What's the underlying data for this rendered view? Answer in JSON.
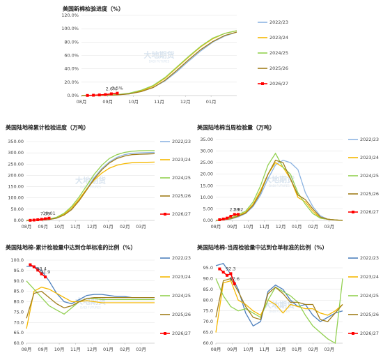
{
  "chart_data": [
    {
      "type": "line",
      "title": "美国新棉检验进度（%）",
      "watermark": "大地期货",
      "watermark_sub": "DADI FUTURES",
      "xlim": [
        0,
        26
      ],
      "xticks": [
        {
          "value": 0,
          "label": "08月"
        },
        {
          "value": 4.4,
          "label": "09月"
        },
        {
          "value": 8.7,
          "label": "10月"
        },
        {
          "value": 13,
          "label": "11月"
        },
        {
          "value": 17.4,
          "label": "12月"
        },
        {
          "value": 21.7,
          "label": "01月"
        }
      ],
      "ylim": [
        0,
        120
      ],
      "yticks": [
        {
          "value": 0,
          "label": "0.0%"
        },
        {
          "value": 20,
          "label": "20.0%"
        },
        {
          "value": 40,
          "label": "40.0%"
        },
        {
          "value": 60,
          "label": "60.0%"
        },
        {
          "value": 80,
          "label": "80.0%"
        },
        {
          "value": 100,
          "label": "100.0%"
        },
        {
          "value": 120,
          "label": "120.0%"
        }
      ],
      "grid": true,
      "x": [
        0,
        2,
        4,
        6,
        8,
        10,
        12,
        14,
        16,
        18,
        20,
        22,
        24,
        26
      ],
      "series": [
        {
          "name": "2022/23",
          "color": "#8db4e2",
          "values": [
            0,
            0.1,
            0.3,
            1,
            2.5,
            6,
            12,
            22,
            36,
            52,
            67,
            80,
            89,
            95
          ]
        },
        {
          "name": "2023/24",
          "color": "#f5b800",
          "values": [
            0,
            0.2,
            0.5,
            1.2,
            3,
            7,
            14,
            26,
            42,
            58,
            73,
            85,
            93,
            97
          ]
        },
        {
          "name": "2024/25",
          "color": "#92d050",
          "values": [
            0,
            0.2,
            0.6,
            1.5,
            3.5,
            8,
            15,
            27,
            43,
            59,
            74,
            86,
            93,
            97
          ]
        },
        {
          "name": "2025/26",
          "color": "#a07d1a",
          "values": [
            0,
            0.1,
            0.4,
            1,
            2.5,
            6,
            12,
            23,
            38,
            54,
            69,
            81,
            90,
            95
          ]
        },
        {
          "name": "2026/27",
          "color": "#ff0000",
          "markers": true,
          "x": [
            1,
            2,
            3,
            4,
            5,
            6
          ],
          "values": [
            0.2,
            0.5,
            0.9,
            1.5,
            2.6,
            3.5
          ],
          "value_labels": [
            null,
            null,
            null,
            null,
            "2.6%",
            "3.5%"
          ]
        }
      ]
    },
    {
      "type": "line",
      "title": "美国陆地棉累计检验进度（万吨）",
      "watermark": "大地期货",
      "watermark_sub": "DADI FUTURES",
      "xlim": [
        0,
        34
      ],
      "xticks": [
        {
          "value": 0,
          "label": "08月"
        },
        {
          "value": 4.4,
          "label": "09月"
        },
        {
          "value": 8.7,
          "label": "10月"
        },
        {
          "value": 13,
          "label": "11月"
        },
        {
          "value": 17.4,
          "label": "12月"
        },
        {
          "value": 21.7,
          "label": "01月"
        },
        {
          "value": 26.1,
          "label": "02月"
        },
        {
          "value": 30.4,
          "label": "03月"
        }
      ],
      "ylim": [
        0,
        350
      ],
      "yticks": [
        {
          "value": 0,
          "label": "0.00"
        },
        {
          "value": 50,
          "label": "50.00"
        },
        {
          "value": 100,
          "label": "100.00"
        },
        {
          "value": 150,
          "label": "150.00"
        },
        {
          "value": 200,
          "label": "200.00"
        },
        {
          "value": 250,
          "label": "250.00"
        },
        {
          "value": 300,
          "label": "300.00"
        },
        {
          "value": 350,
          "label": "350.00"
        }
      ],
      "grid": true,
      "x": [
        0,
        2,
        4,
        6,
        8,
        10,
        12,
        14,
        16,
        18,
        20,
        22,
        24,
        26,
        28,
        30,
        32,
        34
      ],
      "series": [
        {
          "name": "2022/23",
          "color": "#8db4e2",
          "values": [
            0,
            0.5,
            1.5,
            4,
            10,
            25,
            50,
            90,
            140,
            190,
            230,
            260,
            280,
            292,
            298,
            300,
            301,
            302
          ]
        },
        {
          "name": "2023/24",
          "color": "#f5b800",
          "values": [
            0,
            0.5,
            2,
            5,
            12,
            28,
            55,
            95,
            140,
            180,
            210,
            232,
            245,
            252,
            256,
            258,
            258,
            259
          ]
        },
        {
          "name": "2024/25",
          "color": "#92d050",
          "values": [
            0,
            0.8,
            2.5,
            6,
            14,
            32,
            62,
            105,
            155,
            205,
            245,
            275,
            292,
            302,
            307,
            309,
            310,
            310
          ]
        },
        {
          "name": "2025/26",
          "color": "#a07d1a",
          "values": [
            0,
            0.5,
            1.5,
            4,
            10,
            24,
            48,
            88,
            136,
            185,
            225,
            255,
            275,
            286,
            292,
            294,
            295,
            296
          ]
        },
        {
          "name": "2026/27",
          "color": "#ff0000",
          "markers": true,
          "x": [
            1,
            2,
            3,
            4,
            5,
            6
          ],
          "values": [
            0.5,
            1.5,
            3,
            5,
            7.39,
            10.01
          ],
          "value_labels": [
            null,
            null,
            null,
            null,
            "7.39",
            "10.01"
          ]
        }
      ]
    },
    {
      "type": "line",
      "title": "美国陆地棉当周检验量（万吨）",
      "watermark": "大地期货",
      "watermark_sub": "DADI FUTURES",
      "xlim": [
        0,
        34
      ],
      "xticks": [
        {
          "value": 0,
          "label": "08月"
        },
        {
          "value": 4.4,
          "label": "09月"
        },
        {
          "value": 8.7,
          "label": "10月"
        },
        {
          "value": 13,
          "label": "11月"
        },
        {
          "value": 17.4,
          "label": "12月"
        },
        {
          "value": 21.7,
          "label": "01月"
        },
        {
          "value": 26.1,
          "label": "02月"
        },
        {
          "value": 30.4,
          "label": "03月"
        }
      ],
      "ylim": [
        0,
        35
      ],
      "yticks": [
        {
          "value": 0,
          "label": "0.00"
        },
        {
          "value": 5,
          "label": "5.00"
        },
        {
          "value": 10,
          "label": "10.00"
        },
        {
          "value": 15,
          "label": "15.00"
        },
        {
          "value": 20,
          "label": "20.00"
        },
        {
          "value": 25,
          "label": "25.00"
        },
        {
          "value": 30,
          "label": "30.00"
        },
        {
          "value": 35,
          "label": "35.00"
        }
      ],
      "grid": true,
      "x": [
        0,
        2,
        4,
        6,
        8,
        10,
        12,
        14,
        16,
        18,
        20,
        22,
        24,
        26,
        28,
        30,
        32,
        34
      ],
      "series": [
        {
          "name": "2022/23",
          "color": "#8db4e2",
          "values": [
            0,
            0.3,
            0.6,
            1.5,
            3,
            6,
            11,
            18,
            24,
            26,
            25,
            22,
            12,
            6,
            2,
            0.5,
            0.2,
            0
          ]
        },
        {
          "name": "2023/24",
          "color": "#f5b800",
          "values": [
            0,
            0.3,
            0.8,
            2,
            3.5,
            7,
            13,
            20,
            25,
            23,
            18,
            10,
            8,
            4,
            1,
            0.5,
            0.2,
            0
          ]
        },
        {
          "name": "2024/25",
          "color": "#92d050",
          "values": [
            0,
            0.5,
            1,
            2.5,
            4,
            8,
            15,
            24,
            29,
            23,
            20,
            12,
            7,
            3,
            1,
            0.5,
            0.2,
            0
          ]
        },
        {
          "name": "2025/26",
          "color": "#a07d1a",
          "values": [
            0,
            0.3,
            0.7,
            1.8,
            3.2,
            6.5,
            12,
            20,
            26,
            25,
            18,
            11,
            9,
            5,
            1.5,
            0.5,
            0.2,
            0
          ]
        },
        {
          "name": "2026/27",
          "color": "#ff0000",
          "markers": true,
          "x": [
            1,
            2,
            3,
            4,
            5,
            6
          ],
          "values": [
            0.3,
            0.6,
            1,
            1.8,
            2.59,
            2.62
          ],
          "value_labels": [
            null,
            null,
            null,
            null,
            "2.59",
            "2.62"
          ]
        }
      ]
    },
    {
      "type": "line",
      "title": "美国陆地棉-累计检验量中达到仓单标准的比例（%）",
      "watermark": "大地期货",
      "watermark_sub": "DADI FUTURES",
      "xlim": [
        0,
        34
      ],
      "xticks": [
        {
          "value": 0,
          "label": "08月"
        },
        {
          "value": 4.4,
          "label": "09月"
        },
        {
          "value": 8.7,
          "label": "10月"
        },
        {
          "value": 13,
          "label": "11月"
        },
        {
          "value": 17.4,
          "label": "12月"
        },
        {
          "value": 21.7,
          "label": "01月"
        },
        {
          "value": 26.1,
          "label": "02月"
        },
        {
          "value": 30.4,
          "label": "03月"
        }
      ],
      "ylim": [
        60,
        100
      ],
      "yticks": [
        {
          "value": 60,
          "label": "60.0"
        },
        {
          "value": 65,
          "label": "65.0"
        },
        {
          "value": 70,
          "label": "70.0"
        },
        {
          "value": 75,
          "label": "75.0"
        },
        {
          "value": 80,
          "label": "80.0"
        },
        {
          "value": 85,
          "label": "85.0"
        },
        {
          "value": 90,
          "label": "90.0"
        },
        {
          "value": 95,
          "label": "95.0"
        },
        {
          "value": 100,
          "label": "100.0"
        }
      ],
      "grid": true,
      "x": [
        0,
        2,
        4,
        6,
        8,
        10,
        12,
        14,
        16,
        18,
        20,
        22,
        24,
        26,
        28,
        30,
        32,
        34
      ],
      "series": [
        {
          "name": "2022/23",
          "color": "#4f81bd",
          "values": [
            97,
            97,
            95,
            90,
            84,
            80,
            79,
            81,
            83,
            83.5,
            83.5,
            83,
            82.5,
            82.5,
            82,
            82,
            82,
            82
          ]
        },
        {
          "name": "2023/24",
          "color": "#f5b800",
          "values": [
            67,
            85,
            87,
            86,
            84,
            82,
            80,
            80,
            80.5,
            80,
            79.5,
            79.5,
            79.5,
            79.5,
            79.5,
            79.5,
            79.5,
            79.5
          ]
        },
        {
          "name": "2024/25",
          "color": "#92d050",
          "values": [
            90,
            86,
            82,
            78,
            76,
            74,
            77,
            80,
            81.5,
            81.5,
            81,
            81,
            81,
            81,
            81,
            81,
            81,
            81
          ]
        },
        {
          "name": "2025/26",
          "color": "#a07d1a",
          "values": [
            72,
            84,
            85,
            82,
            79,
            77,
            78,
            80,
            81.5,
            82,
            82,
            82,
            82,
            82,
            82,
            82,
            82,
            82
          ]
        },
        {
          "name": "2026/27",
          "color": "#ff0000",
          "markers": true,
          "x": [
            1,
            2,
            3,
            4,
            5
          ],
          "values": [
            97.8,
            96.8,
            95.2,
            93.4,
            91.9
          ],
          "value_labels": [
            null,
            null,
            null,
            "93.4",
            "91.9"
          ]
        }
      ]
    },
    {
      "type": "line",
      "title": "美国陆地棉-当周检验量中达到仓单标准的比例（%）",
      "watermark": "大地期货",
      "watermark_sub": "DADI FUTURES",
      "xlim": [
        0,
        34
      ],
      "xticks": [
        {
          "value": 0,
          "label": "08月"
        },
        {
          "value": 4.4,
          "label": "09月"
        },
        {
          "value": 8.7,
          "label": "10月"
        },
        {
          "value": 13,
          "label": "11月"
        },
        {
          "value": 17.4,
          "label": "12月"
        },
        {
          "value": 21.7,
          "label": "01月"
        },
        {
          "value": 26.1,
          "label": "02月"
        },
        {
          "value": 30.4,
          "label": "03月"
        }
      ],
      "ylim": [
        60,
        95
      ],
      "yticks": [
        {
          "value": 60,
          "label": "60.0"
        },
        {
          "value": 65,
          "label": "65.0"
        },
        {
          "value": 70,
          "label": "70.0"
        },
        {
          "value": 75,
          "label": "75.0"
        },
        {
          "value": 80,
          "label": "80.0"
        },
        {
          "value": 85,
          "label": "85.0"
        },
        {
          "value": 90,
          "label": "90.0"
        },
        {
          "value": 95,
          "label": "95.0"
        }
      ],
      "grid": true,
      "x": [
        0,
        2,
        4,
        6,
        8,
        10,
        12,
        14,
        16,
        18,
        20,
        22,
        24,
        26,
        28,
        30,
        32,
        34
      ],
      "series": [
        {
          "name": "2022/23",
          "color": "#4f81bd",
          "values": [
            96,
            97,
            92,
            85,
            74,
            68,
            70,
            84,
            87,
            85,
            80,
            77,
            78,
            73,
            70,
            72,
            74,
            75
          ]
        },
        {
          "name": "2023/24",
          "color": "#f5b800",
          "values": [
            65,
            88,
            89,
            80,
            78,
            75,
            73,
            80,
            78,
            74,
            78,
            77,
            76,
            76,
            74,
            73,
            75,
            78
          ]
        },
        {
          "name": "2024/25",
          "color": "#92d050",
          "values": [
            90,
            82,
            77,
            75,
            76,
            74,
            72,
            80,
            86,
            84,
            82,
            79,
            73,
            68,
            65,
            62,
            60,
            90
          ]
        },
        {
          "name": "2025/26",
          "color": "#a07d1a",
          "values": [
            72,
            89,
            90,
            84,
            77,
            72,
            71,
            83,
            86,
            83,
            79,
            79,
            78,
            78,
            71,
            70,
            74,
            78
          ]
        },
        {
          "name": "2026/27",
          "color": "#ff0000",
          "markers": true,
          "x": [
            1,
            2,
            3,
            4,
            5
          ],
          "values": [
            94.5,
            93,
            91.5,
            92.3,
            87.6
          ],
          "value_labels": [
            null,
            null,
            null,
            "92.3",
            "87.6"
          ]
        }
      ]
    }
  ]
}
